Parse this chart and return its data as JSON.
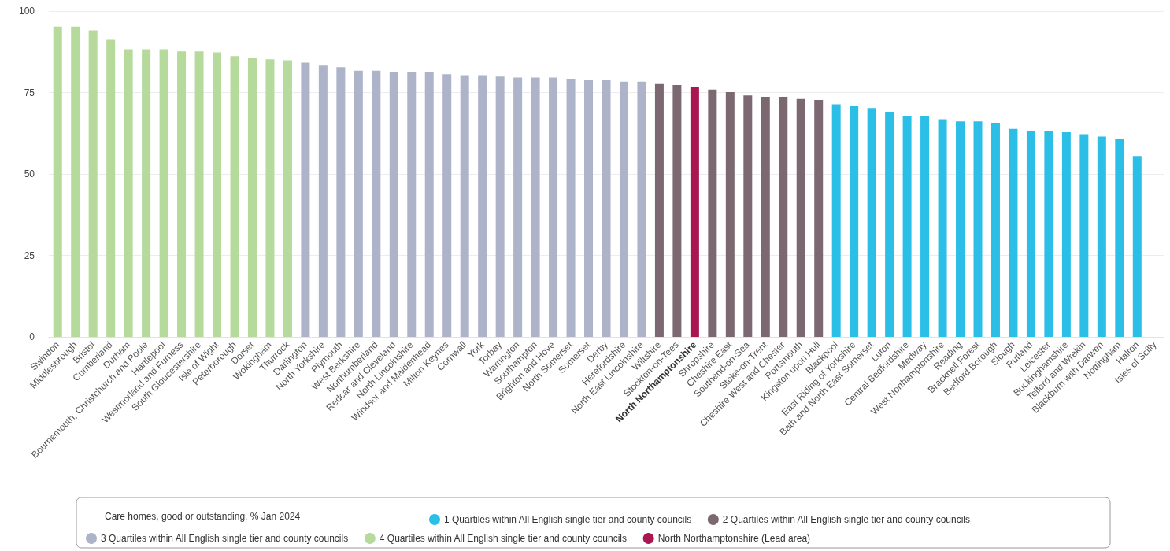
{
  "chart_data": {
    "type": "bar",
    "categories": [
      "Swindon",
      "Middlesbrough",
      "Bristol",
      "Cumberland",
      "Durham",
      "Bournemouth, Christchurch and Poole",
      "Hartlepool",
      "Westmorland and Furness",
      "South Gloucestershire",
      "Isle of Wight",
      "Peterborough",
      "Dorset",
      "Wokingham",
      "Thurrock",
      "Darlington",
      "North Yorkshire",
      "Plymouth",
      "West Berkshire",
      "Northumberland",
      "Redcar and Cleveland",
      "North Lincolnshire",
      "Windsor and Maidenhead",
      "Milton Keynes",
      "Cornwall",
      "York",
      "Torbay",
      "Warrington",
      "Southampton",
      "Brighton and Hove",
      "North Somerset",
      "Somerset",
      "Derby",
      "Herefordshire",
      "North East Lincolnshire",
      "Wiltshire",
      "Stockton-on-Tees",
      "North Northamptonshire",
      "Shropshire",
      "Cheshire East",
      "Southend-on-Sea",
      "Stoke-on-Trent",
      "Cheshire West and Chester",
      "Portsmouth",
      "Kingston upon Hull",
      "Blackpool",
      "East Riding of Yorkshire",
      "Bath and North East Somerset",
      "Luton",
      "Central Bedfordshire",
      "Medway",
      "West Northamptonshire",
      "Reading",
      "Bracknell Forest",
      "Bedford Borough",
      "Slough",
      "Rutland",
      "Leicester",
      "Buckinghamshire",
      "Telford and Wrekin",
      "Blackburn with Darwen",
      "Nottingham",
      "Halton",
      "Isles of Scilly"
    ],
    "series": [
      {
        "name": "1 Quartiles within All English single tier and county councils",
        "color": "#2bbfe8",
        "values": [
          null,
          null,
          null,
          null,
          null,
          null,
          null,
          null,
          null,
          null,
          null,
          null,
          null,
          null,
          null,
          null,
          null,
          null,
          null,
          null,
          null,
          null,
          null,
          null,
          null,
          null,
          null,
          null,
          null,
          null,
          null,
          null,
          null,
          null,
          null,
          null,
          null,
          null,
          null,
          null,
          null,
          null,
          null,
          null,
          71.4,
          70.8,
          70.2,
          69.1,
          67.8,
          67.8,
          66.8,
          66.1,
          66.1,
          65.7,
          63.8,
          63.2,
          63.2,
          62.8,
          62.2,
          61.5,
          60.6,
          55.5,
          null
        ]
      },
      {
        "name": "2 Quartiles within All English single tier and county councils",
        "color": "#7b6870",
        "values": [
          null,
          null,
          null,
          null,
          null,
          null,
          null,
          null,
          null,
          null,
          null,
          null,
          null,
          null,
          null,
          null,
          null,
          null,
          null,
          null,
          null,
          null,
          null,
          null,
          null,
          null,
          null,
          null,
          null,
          null,
          null,
          null,
          null,
          null,
          77.6,
          77.3,
          null,
          75.9,
          75.1,
          74.1,
          73.7,
          73.7,
          73.0,
          72.7,
          null,
          null,
          null,
          null,
          null,
          null,
          null,
          null,
          null,
          null,
          null,
          null,
          null,
          null,
          null,
          null,
          null,
          null,
          null
        ]
      },
      {
        "name": "3 Quartiles within All English single tier and county councils",
        "color": "#adb3c9",
        "values": [
          null,
          null,
          null,
          null,
          null,
          null,
          null,
          null,
          null,
          null,
          null,
          null,
          null,
          null,
          84.2,
          83.3,
          82.8,
          81.7,
          81.7,
          81.3,
          81.3,
          81.3,
          80.6,
          80.3,
          80.3,
          79.9,
          79.6,
          79.6,
          79.6,
          79.2,
          78.9,
          78.9,
          78.3,
          78.3,
          null,
          null,
          null,
          null,
          null,
          null,
          null,
          null,
          null,
          null,
          null,
          null,
          null,
          null,
          null,
          null,
          null,
          null,
          null,
          null,
          null,
          null,
          null,
          null,
          null,
          null,
          null,
          null,
          null
        ]
      },
      {
        "name": "4 Quartiles within All English single tier and county councils",
        "color": "#b6d99c",
        "values": [
          95.2,
          95.2,
          94.1,
          91.2,
          88.3,
          88.3,
          88.3,
          87.6,
          87.6,
          87.3,
          86.2,
          85.5,
          85.2,
          84.9,
          null,
          null,
          null,
          null,
          null,
          null,
          null,
          null,
          null,
          null,
          null,
          null,
          null,
          null,
          null,
          null,
          null,
          null,
          null,
          null,
          null,
          null,
          null,
          null,
          null,
          null,
          null,
          null,
          null,
          null,
          null,
          null,
          null,
          null,
          null,
          null,
          null,
          null,
          null,
          null,
          null,
          null,
          null,
          null,
          null,
          null,
          null,
          null,
          null
        ]
      },
      {
        "name": "North Northamptonshire (Lead area)",
        "color": "#a8174f",
        "values": [
          null,
          null,
          null,
          null,
          null,
          null,
          null,
          null,
          null,
          null,
          null,
          null,
          null,
          null,
          null,
          null,
          null,
          null,
          null,
          null,
          null,
          null,
          null,
          null,
          null,
          null,
          null,
          null,
          null,
          null,
          null,
          null,
          null,
          null,
          null,
          null,
          76.7,
          null,
          null,
          null,
          null,
          null,
          null,
          null,
          null,
          null,
          null,
          null,
          null,
          null,
          null,
          null,
          null,
          null,
          null,
          null,
          null,
          null,
          null,
          null,
          null,
          null,
          null
        ]
      }
    ],
    "ylim": [
      0,
      100
    ],
    "yticks": [
      0,
      25,
      50,
      75,
      100
    ],
    "grid": "y",
    "legend": "bottom",
    "legend_title": "Care homes, good or outstanding, % Jan 2024"
  }
}
